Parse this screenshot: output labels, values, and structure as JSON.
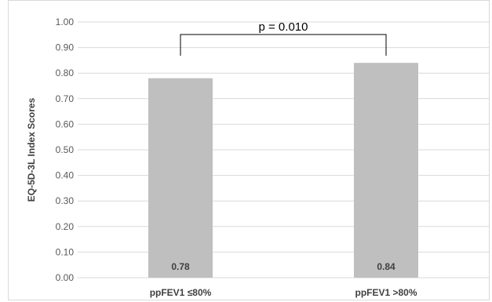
{
  "chart_data": {
    "type": "bar",
    "title": "",
    "xlabel": "",
    "ylabel": "EQ-5D-3L Index Scores",
    "categories": [
      "ppFEV1 ≤80%",
      "ppFEV1 >80%"
    ],
    "values": [
      0.78,
      0.84
    ],
    "data_labels": [
      "0.78",
      "0.84"
    ],
    "ylim": [
      0,
      1.0
    ],
    "yticks": [
      0.0,
      0.1,
      0.2,
      0.3,
      0.4,
      0.5,
      0.6,
      0.7,
      0.8,
      0.9,
      1.0
    ],
    "ytick_labels": [
      "0.00",
      "0.10",
      "0.20",
      "0.30",
      "0.40",
      "0.50",
      "0.60",
      "0.70",
      "0.80",
      "0.90",
      "1.00"
    ],
    "grid": true,
    "legend": "none",
    "annotation": {
      "text": "p = 0.010",
      "type": "significance-bracket"
    },
    "colors": {
      "bar": "#bfbfbf",
      "grid": "#d9d9d9",
      "bracket": "#000000"
    }
  }
}
